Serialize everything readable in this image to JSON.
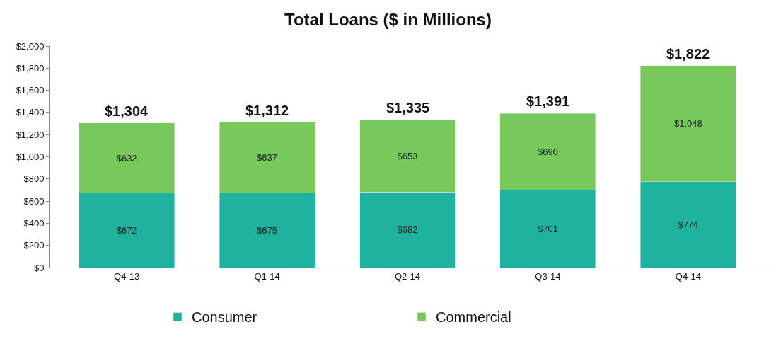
{
  "chart_data": {
    "type": "bar",
    "title": "Total Loans ($ in Millions)",
    "stacked": true,
    "categories": [
      "Q4-13",
      "Q1-14",
      "Q2-14",
      "Q3-14",
      "Q4-14"
    ],
    "series": [
      {
        "name": "Consumer",
        "color": "#1fb39f",
        "values": [
          672,
          675,
          682,
          701,
          774
        ],
        "value_labels": [
          "$672",
          "$675",
          "$682",
          "$701",
          "$774"
        ]
      },
      {
        "name": "Commercial",
        "color": "#77c95b",
        "values": [
          632,
          637,
          653,
          690,
          1048
        ],
        "value_labels": [
          "$632",
          "$637",
          "$653",
          "$690",
          "$1,048"
        ]
      }
    ],
    "totals": [
      "$1,304",
      "$1,312",
      "$1,335",
      "$1,391",
      "$1,822"
    ],
    "ylim": [
      0,
      2000
    ],
    "yticks": [
      {
        "value": 0,
        "label": "$0"
      },
      {
        "value": 200,
        "label": "$200"
      },
      {
        "value": 400,
        "label": "$400"
      },
      {
        "value": 600,
        "label": "$600"
      },
      {
        "value": 800,
        "label": "$800"
      },
      {
        "value": 1000,
        "label": "$1,000"
      },
      {
        "value": 1200,
        "label": "$1,200"
      },
      {
        "value": 1400,
        "label": "$1,400"
      },
      {
        "value": 1600,
        "label": "$1,600"
      },
      {
        "value": 1800,
        "label": "$1,800"
      },
      {
        "value": 2000,
        "label": "$2,000"
      }
    ],
    "legend": "bottom"
  }
}
